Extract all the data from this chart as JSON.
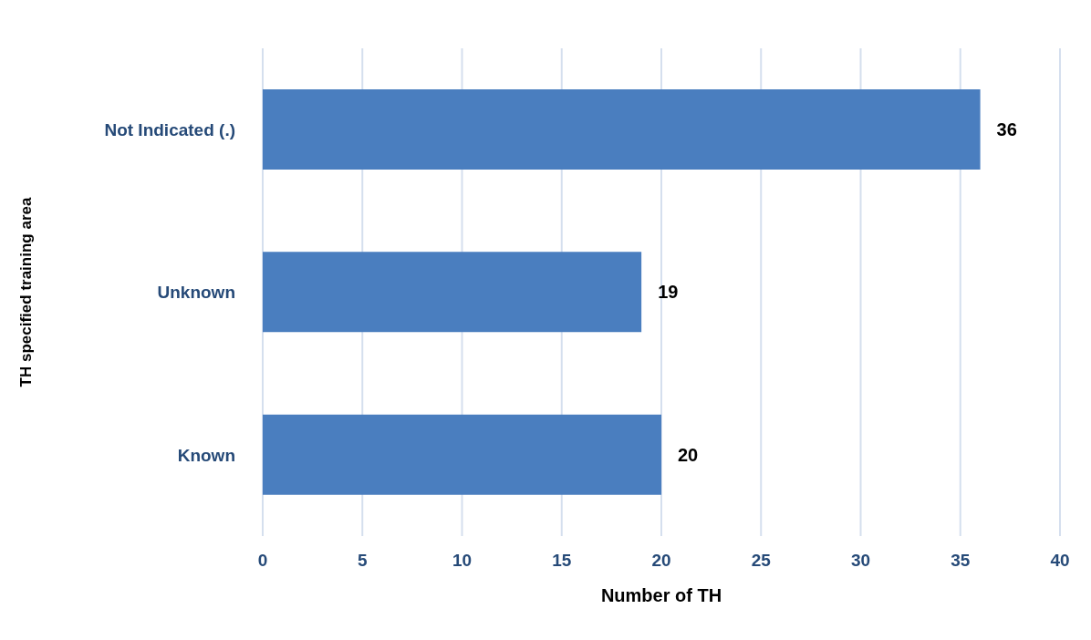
{
  "chart_data": {
    "type": "bar",
    "orientation": "horizontal",
    "categories": [
      "Not Indicated (.)",
      "Unknown",
      "Known"
    ],
    "values": [
      36,
      19,
      20
    ],
    "color": "#4a7ebf",
    "xlim": [
      0,
      40
    ],
    "xticks": [
      0,
      5,
      10,
      15,
      20,
      25,
      30,
      35,
      40
    ],
    "xlabel": "Number of TH",
    "ylabel": "TH specified training area",
    "grid": "x",
    "data_labels": true
  }
}
